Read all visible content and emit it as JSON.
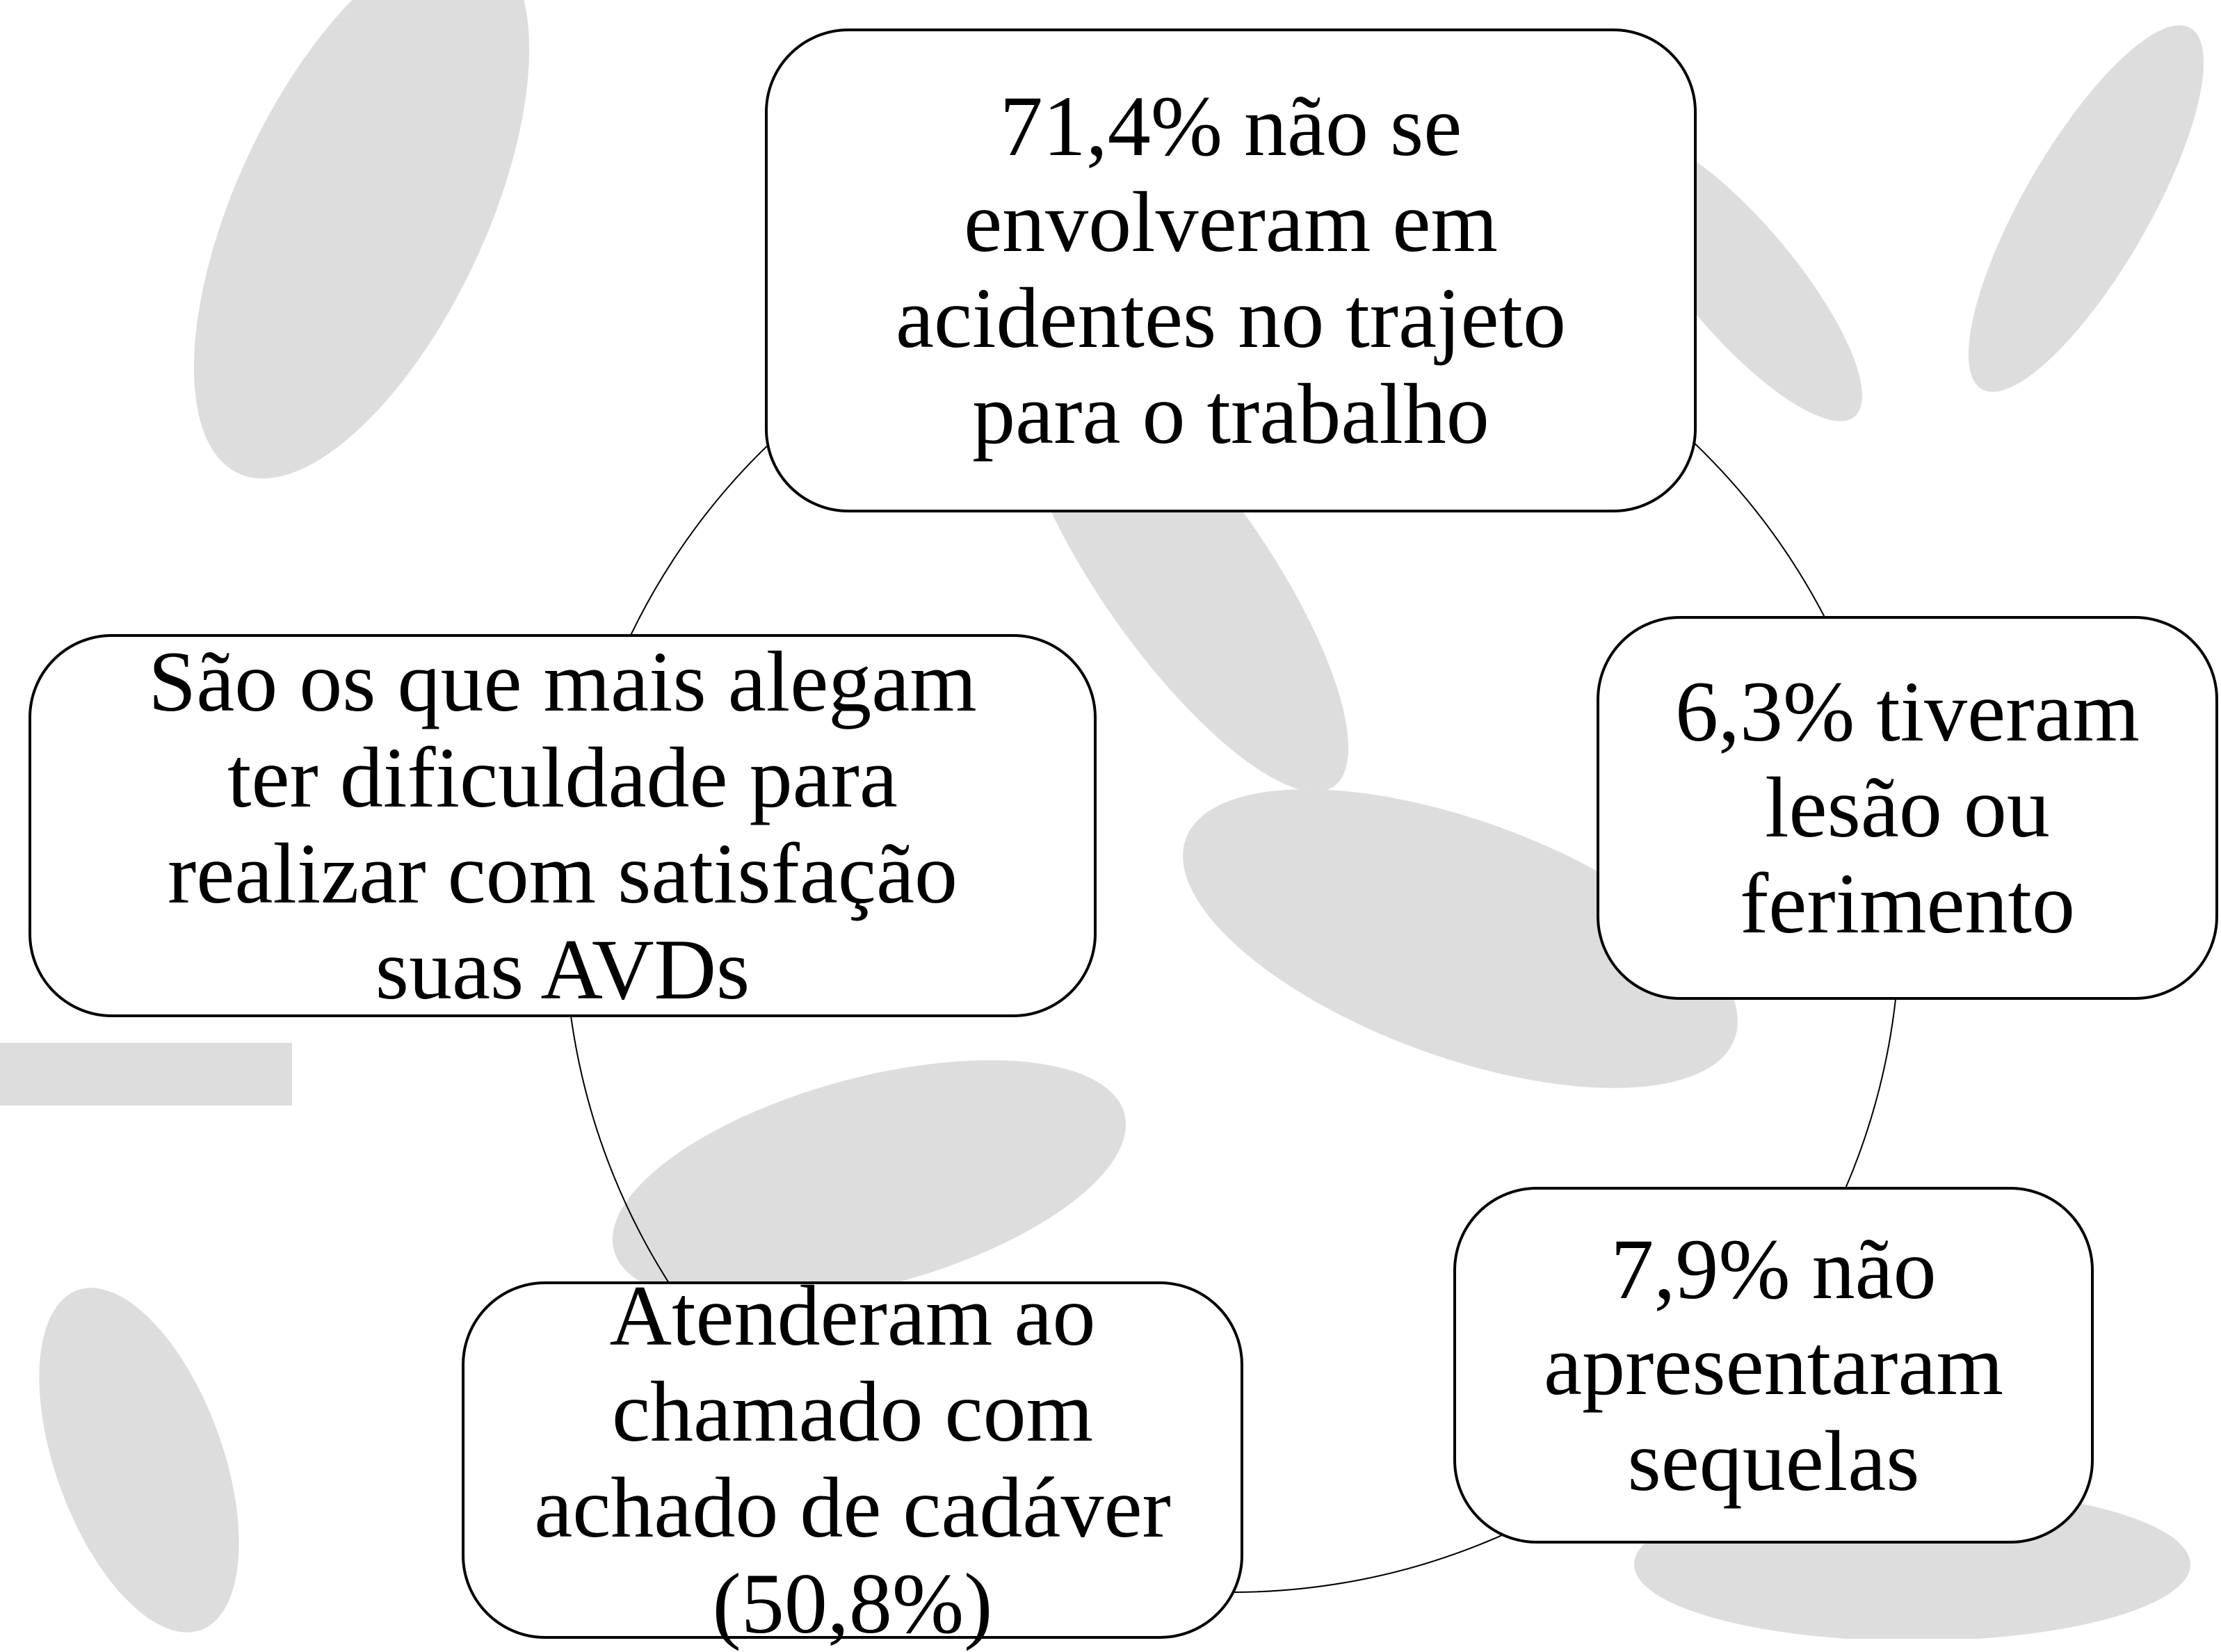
{
  "nodes": [
    {
      "lines": [
        "71,4% não se",
        "envolveram em",
        "acidentes no trajeto",
        "para o trabalho"
      ]
    },
    {
      "lines": [
        "6,3% tiveram",
        "lesão ou",
        "ferimento"
      ]
    },
    {
      "lines": [
        "7,9% não",
        "apresentaram",
        "sequelas"
      ]
    },
    {
      "lines": [
        "Atenderam ao",
        "chamado com",
        "achado de cadáver",
        "(50,8%)"
      ]
    },
    {
      "lines": [
        "São os que mais alegam",
        "ter dificuldade para",
        "realizar com satisfação",
        "suas AVDs"
      ]
    }
  ]
}
